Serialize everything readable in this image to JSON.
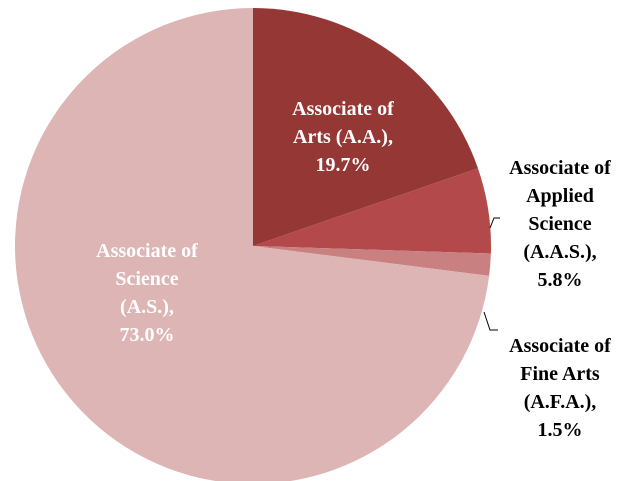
{
  "chart_data": {
    "type": "pie",
    "categories": [
      "Associate of Arts (A.A.)",
      "Associate of Applied Science (A.A.S.)",
      "Associate of Fine Arts (A.F.A.)",
      "Associate of Science (A.S.)"
    ],
    "values": [
      19.7,
      5.8,
      1.5,
      73.0
    ],
    "value_labels": [
      "19.7%",
      "5.8%",
      "1.5%",
      "73.0%"
    ],
    "label_separator": ",",
    "colors": [
      "#953735",
      "#b3494a",
      "#c98081",
      "#ddb5b5"
    ]
  }
}
